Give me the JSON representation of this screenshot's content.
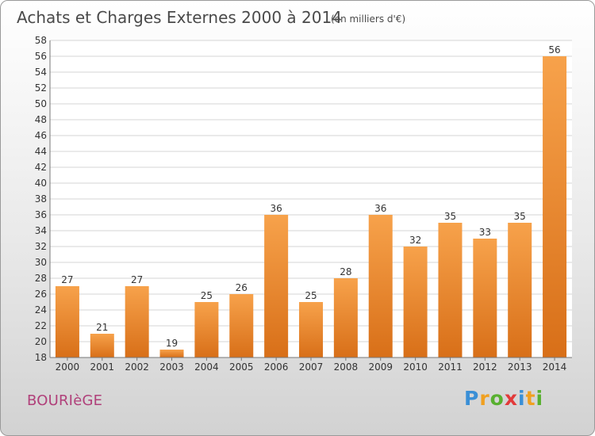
{
  "chart_data": {
    "type": "bar",
    "title": "Achats et Charges Externes 2000 à 2014",
    "unit_label": "(en milliers d'€)",
    "categories": [
      "2000",
      "2001",
      "2002",
      "2003",
      "2004",
      "2005",
      "2006",
      "2007",
      "2008",
      "2009",
      "2010",
      "2011",
      "2012",
      "2013",
      "2014"
    ],
    "values": [
      27,
      21,
      27,
      19,
      25,
      26,
      36,
      25,
      28,
      36,
      32,
      35,
      33,
      35,
      56
    ],
    "ylim": [
      18,
      58
    ],
    "ytick_step": 2,
    "grid": true,
    "bar_color": "#f0913a"
  },
  "commune": "BOURIèGE",
  "logo": {
    "letters": [
      "P",
      "r",
      "o",
      "x",
      "i",
      "t",
      "i"
    ],
    "colors": [
      "#3a8fd6",
      "#f0a020",
      "#58b030",
      "#e23a3a",
      "#3a8fd6",
      "#f0a020",
      "#58b030"
    ]
  }
}
